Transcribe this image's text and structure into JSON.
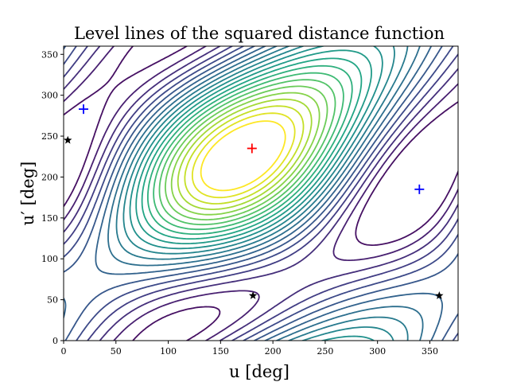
{
  "chart_data": {
    "type": "contour",
    "title": "Level lines of the squared distance function",
    "xlabel": "u [deg]",
    "ylabel": "u′ [deg]",
    "xlim": [
      0,
      377
    ],
    "ylim": [
      0,
      360
    ],
    "xticks": [
      0,
      50,
      100,
      150,
      200,
      250,
      300,
      350
    ],
    "yticks": [
      0,
      50,
      100,
      150,
      200,
      250,
      300,
      350
    ],
    "colormap": "viridis",
    "grid": false,
    "maximum_marker": {
      "u": 180,
      "u_prime": 235,
      "color": "#ff0000",
      "symbol": "plus"
    },
    "blue_plus_markers": [
      {
        "u": 19,
        "u_prime": 283
      },
      {
        "u": 340,
        "u_prime": 185
      }
    ],
    "star_markers": [
      {
        "u": 4,
        "u_prime": 245
      },
      {
        "u": 181,
        "u_prime": 55
      },
      {
        "u": 359,
        "u_prime": 55
      }
    ],
    "marker_colors": {
      "blue": "#0000ff",
      "star": "#000000"
    }
  }
}
